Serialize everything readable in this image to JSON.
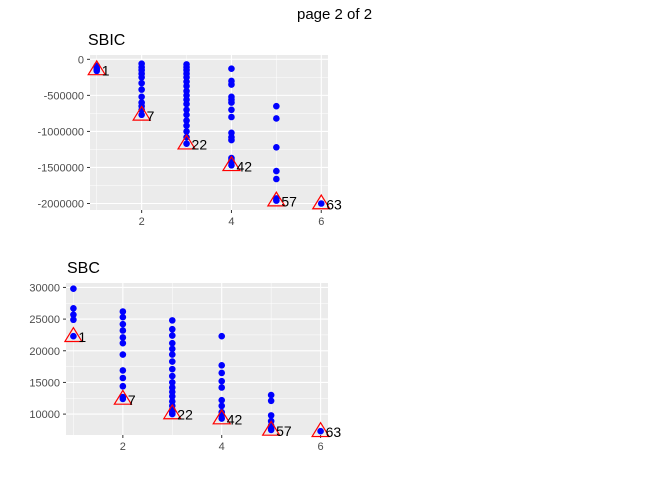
{
  "page": {
    "label": "page 2 of 2"
  },
  "colors": {
    "point": "#0000ff",
    "triangle": "#ff0000",
    "panel": "#ebebeb",
    "grid": "#ffffff"
  },
  "chart_data": [
    {
      "type": "scatter",
      "title": "SBIC",
      "xlabel": "",
      "ylabel": "",
      "xlim": [
        0.85,
        6.15
      ],
      "ylim": [
        -2090000,
        60000
      ],
      "x_ticks": [
        2,
        4,
        6
      ],
      "y_ticks": [
        0,
        -500000,
        -1000000,
        -1500000,
        -2000000
      ],
      "y_tick_labels": [
        "0",
        "-500000",
        "-1000000",
        "-1500000",
        "-2000000"
      ],
      "grid": true,
      "series": [
        {
          "marker": "point",
          "x": [
            1,
            1,
            1,
            1,
            2,
            2,
            2,
            2,
            2,
            2,
            2,
            2,
            2,
            2,
            2,
            2,
            3,
            3,
            3,
            3,
            3,
            3,
            3,
            3,
            3,
            3,
            3,
            3,
            3,
            3,
            3,
            3,
            3,
            3,
            4,
            4,
            4,
            4,
            4,
            4,
            4,
            4,
            4,
            4,
            4,
            4,
            4,
            4,
            4,
            5,
            5,
            5,
            5,
            5,
            5,
            5,
            6
          ],
          "y": [
            -90000,
            -120000,
            -140000,
            -160000,
            -60000,
            -110000,
            -150000,
            -200000,
            -250000,
            -330000,
            -420000,
            -520000,
            -600000,
            -650000,
            -700000,
            -770000,
            -70000,
            -110000,
            -150000,
            -200000,
            -250000,
            -310000,
            -370000,
            -440000,
            -500000,
            -560000,
            -620000,
            -700000,
            -770000,
            -850000,
            -920000,
            -1000000,
            -1080000,
            -1170000,
            -130000,
            -300000,
            -350000,
            -520000,
            -560000,
            -600000,
            -700000,
            -800000,
            -1020000,
            -1080000,
            -1120000,
            -1370000,
            -1400000,
            -1430000,
            -1470000,
            -650000,
            -820000,
            -1220000,
            -1550000,
            -1660000,
            -1930000,
            -1960000,
            -2000000
          ]
        },
        {
          "marker": "triangle",
          "x": [
            1,
            2,
            3,
            4,
            5,
            6
          ],
          "y": [
            -140000,
            -770000,
            -1170000,
            -1470000,
            -1960000,
            -2000000
          ],
          "labels": [
            "1",
            "7",
            "22",
            "42",
            "57",
            "63"
          ]
        }
      ]
    },
    {
      "type": "scatter",
      "title": "SBC",
      "xlabel": "",
      "ylabel": "",
      "xlim": [
        0.85,
        6.15
      ],
      "ylim": [
        6700,
        30700
      ],
      "x_ticks": [
        2,
        4,
        6
      ],
      "y_ticks": [
        30000,
        25000,
        20000,
        15000,
        10000
      ],
      "y_tick_labels": [
        "30000",
        "25000",
        "20000",
        "15000",
        "10000"
      ],
      "grid": true,
      "series": [
        {
          "marker": "point",
          "x": [
            1,
            1,
            1,
            1,
            1,
            2,
            2,
            2,
            2,
            2,
            2,
            2,
            2,
            2,
            2,
            2,
            2,
            3,
            3,
            3,
            3,
            3,
            3,
            3,
            3,
            3,
            3,
            3,
            3,
            3,
            3,
            3,
            3,
            3,
            3,
            3,
            3,
            4,
            4,
            4,
            4,
            4,
            4,
            4,
            4,
            4,
            4,
            5,
            5,
            5,
            5,
            5,
            5,
            5,
            6
          ],
          "y": [
            29800,
            26700,
            25700,
            24900,
            22300,
            26200,
            25300,
            24200,
            23200,
            22100,
            21200,
            19400,
            16900,
            15700,
            14400,
            12700,
            12400,
            24800,
            23400,
            22400,
            21200,
            20300,
            19400,
            18300,
            17100,
            16000,
            15000,
            14200,
            13500,
            12800,
            12000,
            11300,
            10700,
            10400,
            10000,
            10100,
            10200,
            22300,
            17700,
            16500,
            15200,
            14200,
            12200,
            11300,
            10300,
            9800,
            9300,
            13000,
            12100,
            9800,
            8900,
            8200,
            7700,
            7500,
            7300
          ]
        },
        {
          "marker": "triangle",
          "x": [
            1,
            2,
            3,
            4,
            5,
            6
          ],
          "y": [
            22300,
            12400,
            10100,
            9300,
            7500,
            7300
          ],
          "labels": [
            "1",
            "7",
            "22",
            "42",
            "57",
            "63"
          ]
        }
      ]
    }
  ]
}
